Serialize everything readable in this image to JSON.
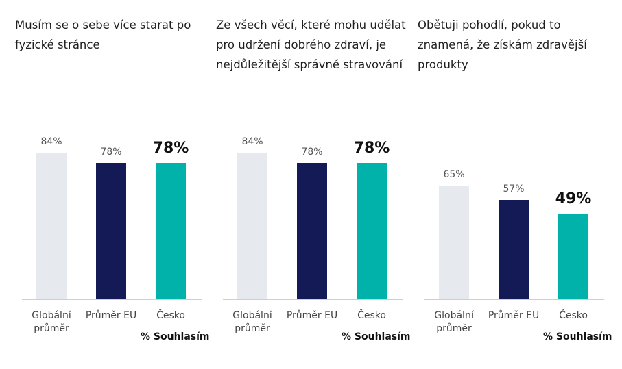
{
  "chart_data": [
    {
      "type": "bar",
      "title": "Musím se o sebe více starat po fyzické stránce",
      "categories": [
        "Globální průměr",
        "Průměr EU",
        "Česko"
      ],
      "values": [
        84,
        78,
        78
      ],
      "labels": [
        "84%",
        "78%",
        "78%"
      ],
      "xlabel": "% Souhlasím",
      "ylabel": "",
      "ylim": [
        0,
        100
      ],
      "grid": false
    },
    {
      "type": "bar",
      "title": "Ze všech věcí, které mohu udělat pro udržení dobrého zdraví, je nejdůležitější správné stravování",
      "categories": [
        "Globální průměr",
        "Průměr EU",
        "Česko"
      ],
      "values": [
        84,
        78,
        78
      ],
      "labels": [
        "84%",
        "78%",
        "78%"
      ],
      "xlabel": "% Souhlasím",
      "ylabel": "",
      "ylim": [
        0,
        100
      ],
      "grid": false
    },
    {
      "type": "bar",
      "title": "Obětuji pohodlí, pokud to znamená, že získám zdravější produkty",
      "categories": [
        "Globální průměr",
        "Průměr EU",
        "Česko"
      ],
      "values": [
        65,
        57,
        49
      ],
      "labels": [
        "65%",
        "57%",
        "49%"
      ],
      "xlabel": "% Souhlasím",
      "ylabel": "",
      "ylim": [
        0,
        100
      ],
      "grid": false
    }
  ],
  "colors": [
    "#e6eaef",
    "#141a56",
    "#00b2a9"
  ],
  "highlight_index": 2
}
